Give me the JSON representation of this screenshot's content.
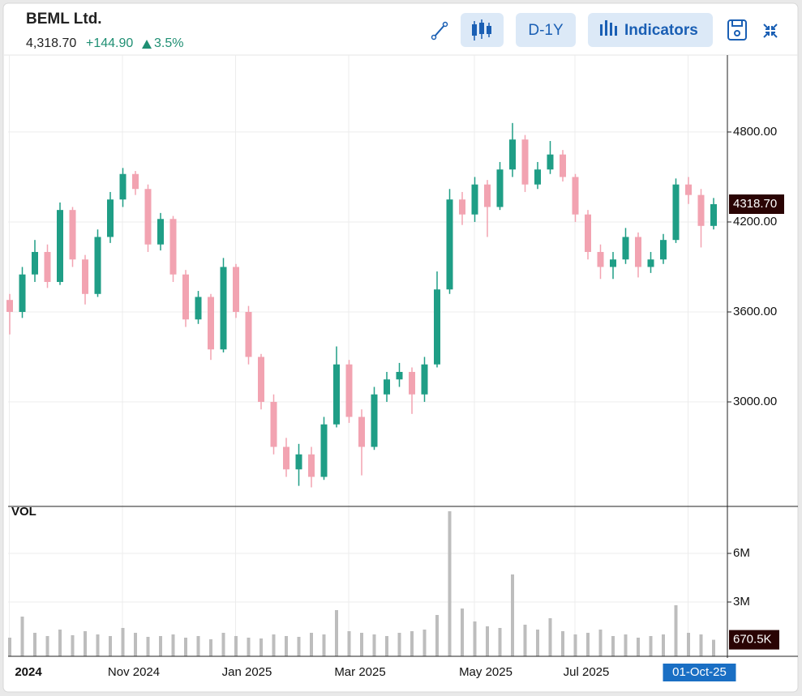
{
  "header": {
    "title": "BEML Ltd.",
    "price": "4,318.70",
    "change": "+144.90",
    "change_pct": "3.5%"
  },
  "toolbar": {
    "range": "D-1Y",
    "indicators": "Indicators"
  },
  "chart_data": {
    "type": "candlestick",
    "categories": [
      null,
      "2024",
      null,
      null,
      null,
      null,
      null,
      null,
      null,
      null,
      "Nov 2024",
      null,
      null,
      null,
      null,
      null,
      null,
      null,
      null,
      "Jan 2025",
      null,
      null,
      null,
      null,
      null,
      null,
      null,
      null,
      "Mar 2025",
      null,
      null,
      null,
      null,
      null,
      null,
      null,
      null,
      null,
      "May 2025",
      null,
      null,
      null,
      null,
      null,
      null,
      null,
      "Jul 2025",
      null,
      null,
      null,
      null,
      null,
      null,
      null,
      null,
      "01-Oct-25",
      null
    ],
    "open": [
      3680,
      3600,
      3850,
      4000,
      3800,
      4280,
      3950,
      3720,
      4100,
      4350,
      4520,
      4420,
      4050,
      4220,
      3850,
      3550,
      3700,
      3350,
      3900,
      3600,
      3300,
      3000,
      2700,
      2550,
      2650,
      2500,
      2850,
      3250,
      2900,
      2700,
      3050,
      3150,
      3200,
      3050,
      3250,
      3750,
      4350,
      4250,
      4450,
      4300,
      4550,
      4750,
      4450,
      4550,
      4650,
      4500,
      4250,
      4000,
      3900,
      3950,
      4100,
      3900,
      3950,
      4080,
      4450,
      4380,
      4173.8
    ],
    "high": [
      3720,
      3900,
      4080,
      4050,
      4330,
      4300,
      3980,
      4150,
      4400,
      4560,
      4540,
      4450,
      4260,
      4240,
      3880,
      3740,
      3720,
      3960,
      3920,
      3640,
      3320,
      3050,
      2760,
      2720,
      2700,
      2900,
      3370,
      3280,
      2950,
      3100,
      3200,
      3260,
      3230,
      3300,
      3870,
      4420,
      4400,
      4500,
      4480,
      4600,
      4860,
      4780,
      4600,
      4740,
      4680,
      4520,
      4280,
      4050,
      4000,
      4160,
      4130,
      4000,
      4120,
      4490,
      4500,
      4420,
      4360
    ],
    "low": [
      3450,
      3560,
      3800,
      3760,
      3780,
      3900,
      3650,
      3700,
      4060,
      4300,
      4380,
      4000,
      4010,
      3800,
      3500,
      3520,
      3280,
      3330,
      3560,
      3250,
      2950,
      2650,
      2500,
      2440,
      2430,
      2480,
      2830,
      2860,
      2510,
      2680,
      3000,
      3100,
      2920,
      3000,
      3230,
      3720,
      4180,
      4200,
      4100,
      4280,
      4500,
      4400,
      4420,
      4520,
      4470,
      4200,
      3950,
      3820,
      3820,
      3920,
      3830,
      3860,
      3920,
      4060,
      4320,
      4030,
      4150
    ],
    "close": [
      3600,
      3850,
      4000,
      3800,
      4280,
      3950,
      3720,
      4100,
      4350,
      4520,
      4420,
      4050,
      4220,
      3850,
      3550,
      3700,
      3350,
      3900,
      3600,
      3300,
      3000,
      2700,
      2550,
      2650,
      2500,
      2850,
      3250,
      2900,
      2700,
      3050,
      3150,
      3200,
      3050,
      3250,
      3750,
      4350,
      4250,
      4450,
      4300,
      4550,
      4750,
      4450,
      4550,
      4650,
      4500,
      4250,
      4000,
      3900,
      3950,
      4100,
      3900,
      3950,
      4080,
      4450,
      4380,
      4173.8,
      4318.7
    ],
    "up_color": "#1f9e86",
    "down_color": "#f2a3b1",
    "ylim": [
      2303,
      5313
    ],
    "yticks": [
      {
        "value": 3000,
        "label": "3000.00"
      },
      {
        "value": 3600,
        "label": "3600.00"
      },
      {
        "value": 4200,
        "label": "4200.00"
      },
      {
        "value": 4800,
        "label": "4800.00"
      }
    ],
    "price_tag": "4318.70",
    "grid": true,
    "volume": {
      "label": "VOL",
      "values": [
        800000,
        2100000,
        1100000,
        900000,
        1300000,
        950000,
        1200000,
        1000000,
        900000,
        1400000,
        1100000,
        850000,
        900000,
        1000000,
        800000,
        900000,
        700000,
        1100000,
        900000,
        800000,
        750000,
        1000000,
        900000,
        850000,
        1100000,
        1000000,
        2500000,
        1200000,
        1100000,
        1000000,
        900000,
        1100000,
        1200000,
        1300000,
        2200000,
        8600000,
        2600000,
        1800000,
        1500000,
        1400000,
        4700000,
        1600000,
        1300000,
        2000000,
        1200000,
        1000000,
        1100000,
        1300000,
        900000,
        1000000,
        800000,
        900000,
        1000000,
        2800000,
        1100000,
        1000000,
        670500
      ],
      "color": "#bdbdbd",
      "ylim": [
        0,
        8900000
      ],
      "yticks": [
        {
          "value": 3000000,
          "label": "3M"
        },
        {
          "value": 6000000,
          "label": "6M"
        }
      ],
      "tag": "670.5K"
    }
  }
}
